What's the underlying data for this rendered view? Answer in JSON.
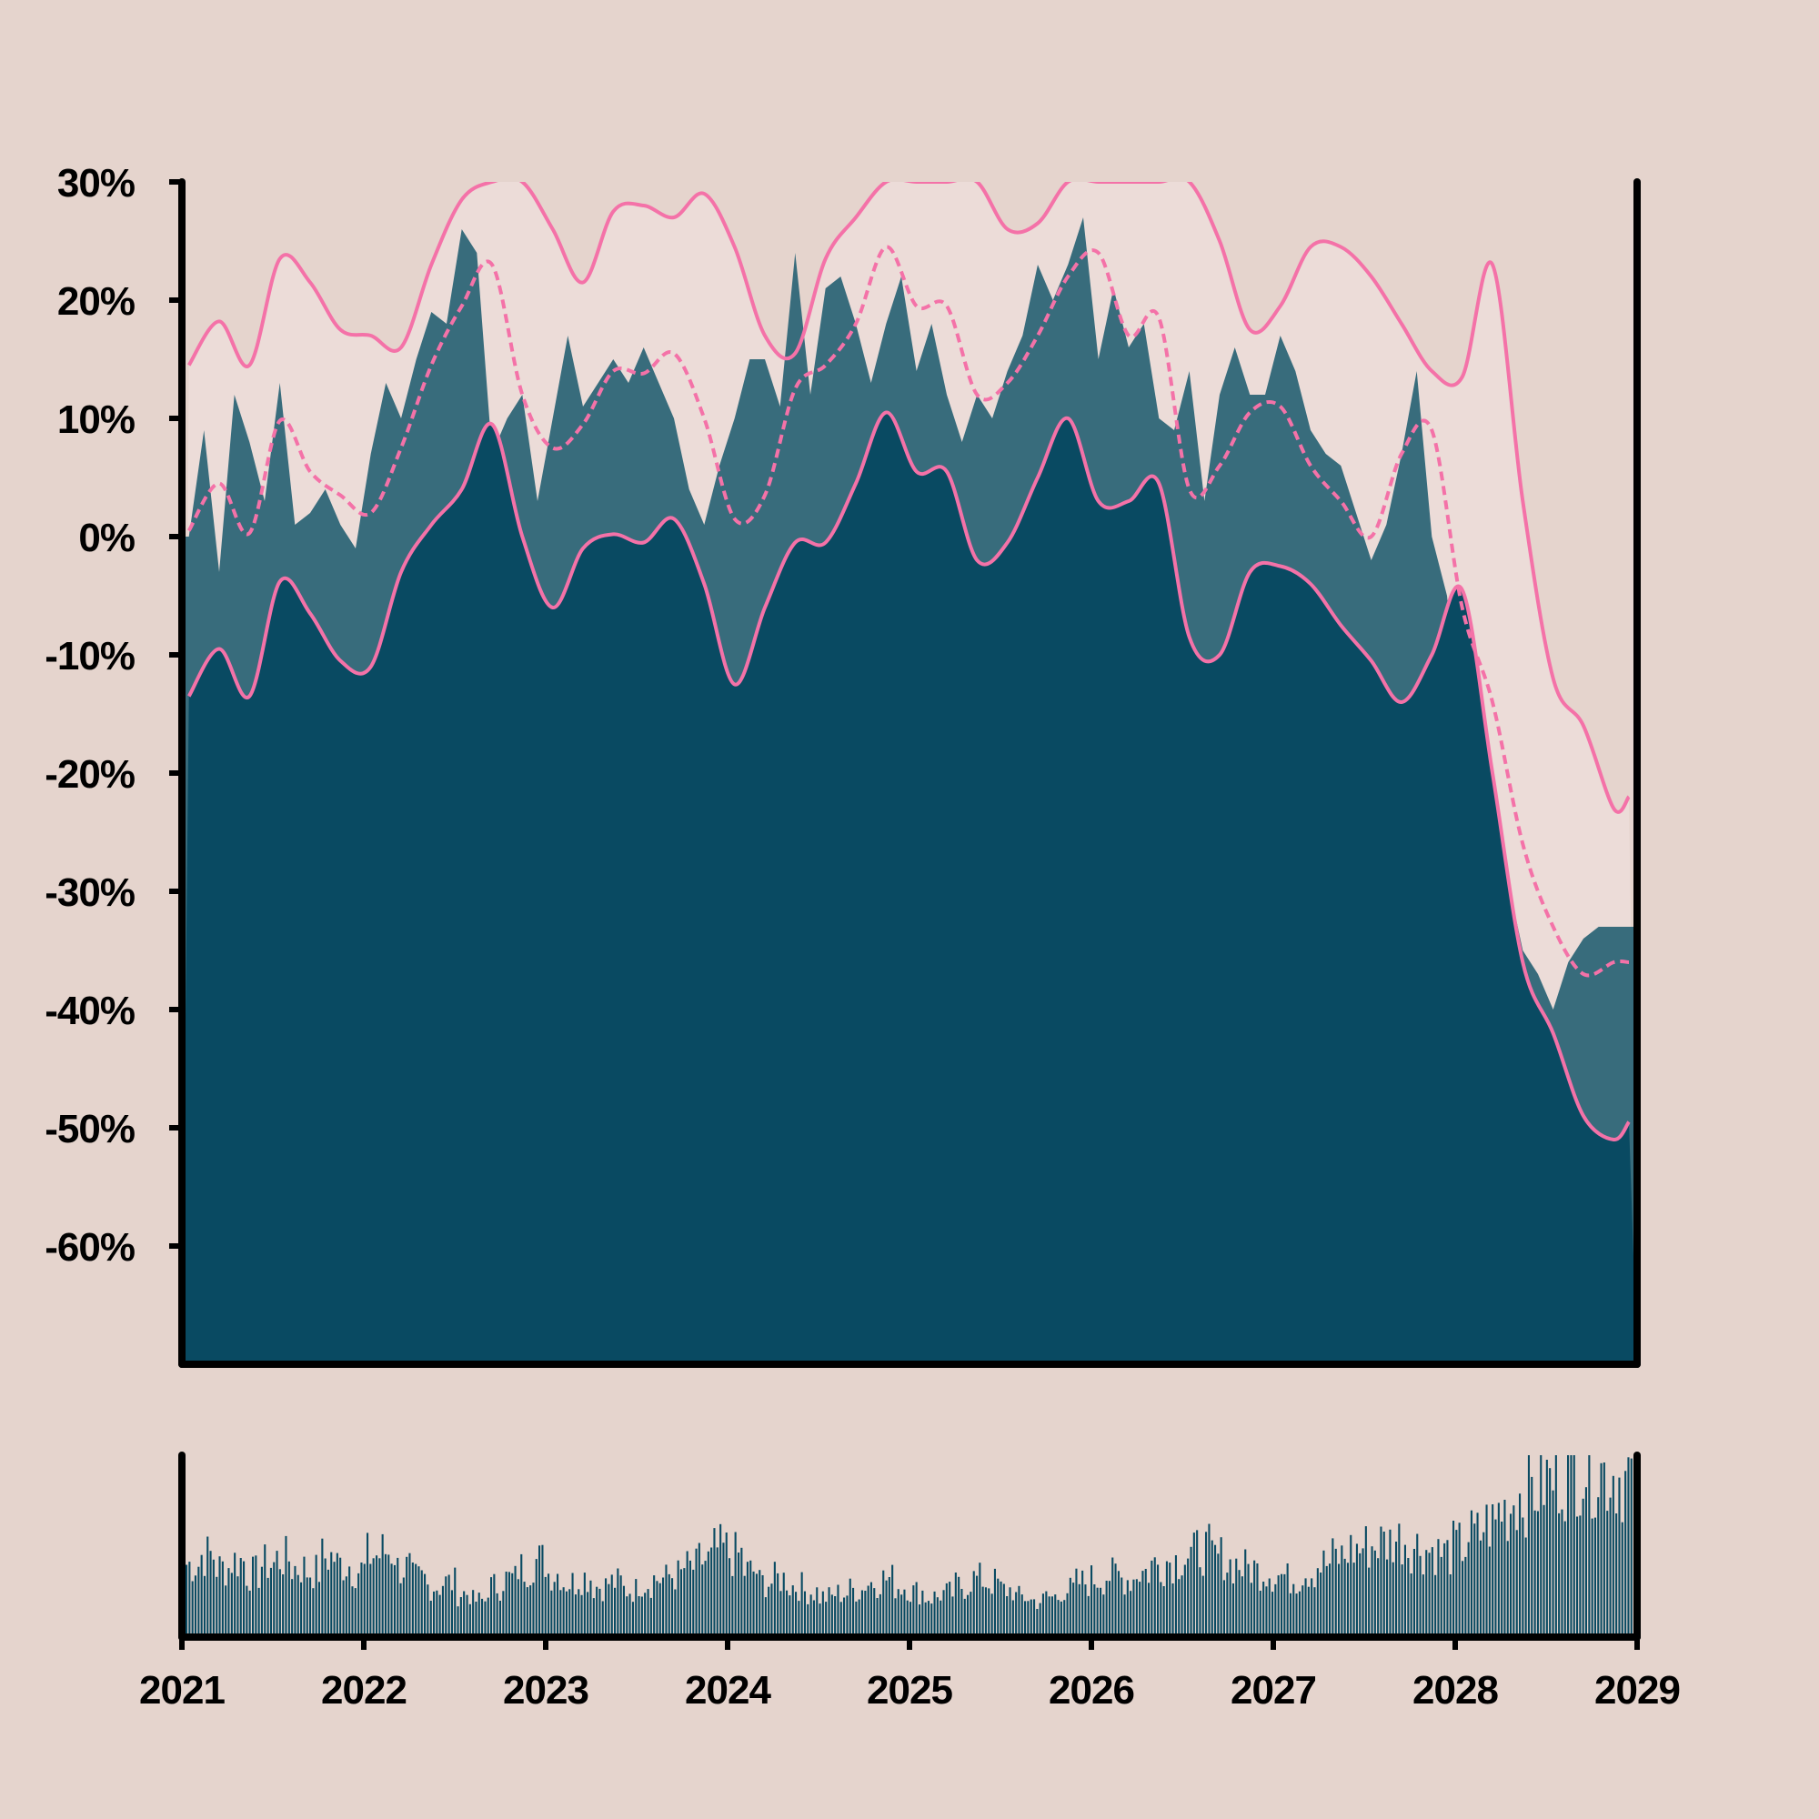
{
  "chart_data": {
    "type": "area",
    "title": "",
    "xlabel": "",
    "ylabel": "",
    "x_range": [
      "2021-01-01",
      "2029-01-01"
    ],
    "ylim": [
      -70,
      30
    ],
    "y_ticks": [
      "30%",
      "20%",
      "10%",
      "0%",
      "-10%",
      "-20%",
      "-30%",
      "-40%",
      "-50%",
      "-60%"
    ],
    "y_tick_values": [
      30,
      20,
      10,
      0,
      -10,
      -20,
      -30,
      -40,
      -50,
      -60
    ],
    "x_ticks": [
      "2021",
      "2022",
      "2023",
      "2024",
      "2025",
      "2026",
      "2027",
      "2028",
      "2029"
    ],
    "colors": {
      "background": "#e5d4cd",
      "band_fill": "#ecdcd8",
      "main_fill": "#094a62",
      "series_fill": "#386c7c",
      "band_lines": "#f472a8",
      "volume_bars": "#094a62",
      "axes": "#000000"
    },
    "series": [
      {
        "role": "price",
        "x": [
          "2021-01",
          "2021-02",
          "2021-03",
          "2021-04",
          "2021-05",
          "2021-06",
          "2021-07",
          "2021-08",
          "2021-09",
          "2021-10",
          "2021-11",
          "2021-12",
          "2022-01",
          "2022-02",
          "2022-03",
          "2022-04",
          "2022-05",
          "2022-06",
          "2022-07",
          "2022-08",
          "2022-09",
          "2022-10",
          "2022-11",
          "2022-12",
          "2023-01",
          "2023-02",
          "2023-03",
          "2023-04",
          "2023-05",
          "2023-06",
          "2023-07",
          "2023-08",
          "2023-09",
          "2023-10",
          "2023-11",
          "2023-12",
          "2024-01",
          "2024-02",
          "2024-03",
          "2024-04",
          "2024-05",
          "2024-06",
          "2024-07",
          "2024-08",
          "2024-09",
          "2024-10",
          "2024-11",
          "2024-12",
          "2025-01",
          "2025-02",
          "2025-03",
          "2025-04",
          "2025-05",
          "2025-06",
          "2025-07",
          "2025-08",
          "2025-09",
          "2025-10",
          "2025-11",
          "2025-12",
          "2026-01",
          "2026-02",
          "2026-03",
          "2026-04",
          "2026-05",
          "2026-06",
          "2026-07",
          "2026-08",
          "2026-09",
          "2026-10",
          "2026-11",
          "2026-12",
          "2027-01",
          "2027-02",
          "2027-03",
          "2027-04",
          "2027-05",
          "2027-06",
          "2027-07",
          "2027-08",
          "2027-09",
          "2027-10",
          "2027-11",
          "2027-12",
          "2028-01",
          "2028-02",
          "2028-03",
          "2028-04",
          "2028-05",
          "2028-06",
          "2028-07",
          "2028-08",
          "2028-09",
          "2028-10",
          "2028-11",
          "2028-12"
        ],
        "values": [
          0,
          9,
          -3,
          12,
          8,
          3,
          13,
          1,
          2,
          4,
          1,
          -1,
          7,
          13,
          10,
          15,
          19,
          18,
          26,
          24,
          7,
          10,
          12,
          3,
          10,
          17,
          11,
          13,
          15,
          13,
          16,
          13,
          10,
          4,
          1,
          6,
          10,
          15,
          15,
          11,
          24,
          12,
          21,
          22,
          18,
          13,
          18,
          22,
          14,
          18,
          12,
          8,
          12,
          10,
          14,
          17,
          23,
          20,
          23,
          27,
          15,
          21,
          16,
          18,
          10,
          9,
          14,
          3,
          12,
          16,
          12,
          12,
          17,
          14,
          9,
          7,
          6,
          2,
          -2,
          1,
          7,
          14,
          0,
          -5,
          -19,
          -26,
          -28,
          -29,
          -35,
          -37,
          -40,
          -36,
          -34,
          -33,
          -33,
          -33
        ]
      },
      {
        "role": "band_upper",
        "x": [
          "2021-01",
          "2021-03",
          "2021-05",
          "2021-07",
          "2021-09",
          "2021-11",
          "2022-01",
          "2022-03",
          "2022-05",
          "2022-07",
          "2022-09",
          "2022-11",
          "2023-01",
          "2023-03",
          "2023-05",
          "2023-07",
          "2023-09",
          "2023-11",
          "2024-01",
          "2024-03",
          "2024-05",
          "2024-07",
          "2024-09",
          "2024-11",
          "2025-01",
          "2025-03",
          "2025-05",
          "2025-07",
          "2025-09",
          "2025-11",
          "2026-01",
          "2026-03",
          "2026-05",
          "2026-07",
          "2026-09",
          "2026-11",
          "2027-01",
          "2027-03",
          "2027-05",
          "2027-07",
          "2027-09",
          "2027-11",
          "2028-01",
          "2028-03",
          "2028-05",
          "2028-07",
          "2028-09",
          "2028-11",
          "2028-12"
        ],
        "values": [
          14.5,
          18.2,
          14.5,
          23.5,
          21.5,
          17.5,
          17,
          16,
          23,
          28.5,
          30,
          30,
          26,
          21.5,
          27.5,
          28,
          27,
          29,
          24.5,
          17,
          15.5,
          23.5,
          27,
          30,
          30,
          30,
          30,
          26,
          26.5,
          30,
          30,
          30,
          30,
          30,
          25,
          17.5,
          19.5,
          24.5,
          24.5,
          22,
          18,
          14,
          13.5,
          23,
          3,
          -12,
          -16,
          -23,
          -22
        ]
      },
      {
        "role": "band_middle",
        "x": [
          "2021-01",
          "2021-03",
          "2021-05",
          "2021-07",
          "2021-09",
          "2021-11",
          "2022-01",
          "2022-03",
          "2022-05",
          "2022-07",
          "2022-09",
          "2022-11",
          "2023-01",
          "2023-03",
          "2023-05",
          "2023-07",
          "2023-09",
          "2023-11",
          "2024-01",
          "2024-03",
          "2024-05",
          "2024-07",
          "2024-09",
          "2024-11",
          "2025-01",
          "2025-03",
          "2025-05",
          "2025-07",
          "2025-09",
          "2025-11",
          "2026-01",
          "2026-03",
          "2026-05",
          "2026-07",
          "2026-09",
          "2026-11",
          "2027-01",
          "2027-03",
          "2027-05",
          "2027-07",
          "2027-09",
          "2027-11",
          "2028-01",
          "2028-03",
          "2028-05",
          "2028-07",
          "2028-09",
          "2028-11",
          "2028-12"
        ],
        "values": [
          0.5,
          4.5,
          0.3,
          9.8,
          5.5,
          3.5,
          2,
          7.5,
          14.5,
          19.5,
          23,
          12,
          7.5,
          9.5,
          14,
          13.8,
          15.5,
          10,
          1.5,
          3.5,
          12.5,
          14.5,
          18,
          24.5,
          19.5,
          19.5,
          12,
          13,
          17,
          22,
          24,
          17,
          18.5,
          4,
          6,
          10.5,
          11,
          6,
          3,
          0,
          7,
          9,
          -6,
          -14,
          -26,
          -33,
          -37,
          -36,
          -36
        ]
      },
      {
        "role": "band_lower",
        "x": [
          "2021-01",
          "2021-03",
          "2021-05",
          "2021-07",
          "2021-09",
          "2021-11",
          "2022-01",
          "2022-03",
          "2022-05",
          "2022-07",
          "2022-09",
          "2022-11",
          "2023-01",
          "2023-03",
          "2023-05",
          "2023-07",
          "2023-09",
          "2023-11",
          "2024-01",
          "2024-03",
          "2024-05",
          "2024-07",
          "2024-09",
          "2024-11",
          "2025-01",
          "2025-03",
          "2025-05",
          "2025-07",
          "2025-09",
          "2025-11",
          "2026-01",
          "2026-03",
          "2026-05",
          "2026-07",
          "2026-09",
          "2026-11",
          "2027-01",
          "2027-03",
          "2027-05",
          "2027-07",
          "2027-09",
          "2027-11",
          "2028-01",
          "2028-03",
          "2028-05",
          "2028-07",
          "2028-09",
          "2028-11",
          "2028-12"
        ],
        "values": [
          -13.5,
          -9.5,
          -13.5,
          -3.8,
          -6.5,
          -10.5,
          -11,
          -3,
          1,
          4,
          9.5,
          0,
          -6,
          -1,
          0.2,
          -0.5,
          1.5,
          -4,
          -12.5,
          -6,
          -0.5,
          -0.5,
          4.5,
          10.5,
          5.5,
          5.5,
          -2,
          -0.5,
          5,
          10,
          3,
          3,
          4.5,
          -8.5,
          -10,
          -3,
          -2.5,
          -4,
          -7.5,
          -10.5,
          -14,
          -10,
          -4.5,
          -20,
          -36,
          -42,
          -49,
          -51,
          -49.5
        ]
      }
    ],
    "volume": {
      "x": [
        "2021-01",
        "2021-02",
        "2021-03",
        "2021-04",
        "2021-05",
        "2021-06",
        "2021-07",
        "2021-08",
        "2021-09",
        "2021-10",
        "2021-11",
        "2021-12",
        "2022-01",
        "2022-02",
        "2022-03",
        "2022-04",
        "2022-05",
        "2022-06",
        "2022-07",
        "2022-08",
        "2022-09",
        "2022-10",
        "2022-11",
        "2022-12",
        "2023-01",
        "2023-02",
        "2023-03",
        "2023-04",
        "2023-05",
        "2023-06",
        "2023-07",
        "2023-08",
        "2023-09",
        "2023-10",
        "2023-11",
        "2023-12",
        "2024-01",
        "2024-02",
        "2024-03",
        "2024-04",
        "2024-05",
        "2024-06",
        "2024-07",
        "2024-08",
        "2024-09",
        "2024-10",
        "2024-11",
        "2024-12",
        "2025-01",
        "2025-02",
        "2025-03",
        "2025-04",
        "2025-05",
        "2025-06",
        "2025-07",
        "2025-08",
        "2025-09",
        "2025-10",
        "2025-11",
        "2025-12",
        "2026-01",
        "2026-02",
        "2026-03",
        "2026-04",
        "2026-05",
        "2026-06",
        "2026-07",
        "2026-08",
        "2026-09",
        "2026-10",
        "2026-11",
        "2026-12",
        "2027-01",
        "2027-02",
        "2027-03",
        "2027-04",
        "2027-05",
        "2027-06",
        "2027-07",
        "2027-08",
        "2027-09",
        "2027-10",
        "2027-11",
        "2027-12",
        "2028-01",
        "2028-02",
        "2028-03",
        "2028-04",
        "2028-05",
        "2028-06",
        "2028-07",
        "2028-08",
        "2028-09",
        "2028-10",
        "2028-11",
        "2028-12"
      ],
      "values": [
        0.4,
        0.45,
        0.38,
        0.42,
        0.35,
        0.4,
        0.43,
        0.38,
        0.36,
        0.44,
        0.4,
        0.37,
        0.45,
        0.47,
        0.38,
        0.32,
        0.28,
        0.3,
        0.24,
        0.2,
        0.28,
        0.32,
        0.38,
        0.42,
        0.35,
        0.3,
        0.33,
        0.28,
        0.3,
        0.26,
        0.3,
        0.32,
        0.34,
        0.38,
        0.42,
        0.48,
        0.45,
        0.36,
        0.3,
        0.32,
        0.28,
        0.25,
        0.22,
        0.24,
        0.26,
        0.3,
        0.32,
        0.28,
        0.25,
        0.22,
        0.24,
        0.28,
        0.32,
        0.3,
        0.26,
        0.22,
        0.2,
        0.22,
        0.26,
        0.3,
        0.32,
        0.34,
        0.32,
        0.36,
        0.4,
        0.42,
        0.45,
        0.48,
        0.44,
        0.4,
        0.38,
        0.36,
        0.34,
        0.32,
        0.36,
        0.4,
        0.44,
        0.48,
        0.5,
        0.52,
        0.54,
        0.5,
        0.48,
        0.46,
        0.5,
        0.56,
        0.62,
        0.7,
        0.78,
        0.82,
        0.86,
        0.9,
        0.94,
        0.92,
        0.9,
        0.88
      ]
    },
    "grid": false,
    "legend": "none"
  }
}
